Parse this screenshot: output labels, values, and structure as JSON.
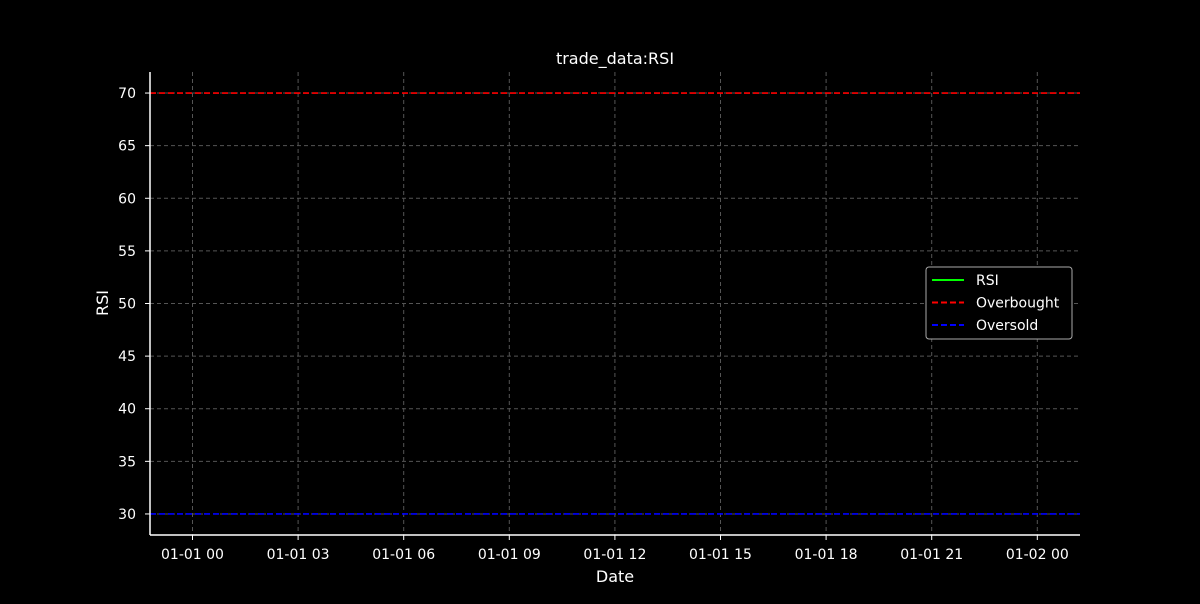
{
  "chart_data": {
    "type": "line",
    "title": "trade_data:RSI",
    "xlabel": "Date",
    "ylabel": "RSI",
    "x_ticks": [
      "01-01 00",
      "01-01 03",
      "01-01 06",
      "01-01 09",
      "01-01 12",
      "01-01 15",
      "01-01 18",
      "01-01 21",
      "01-02 00"
    ],
    "y_ticks": [
      30,
      35,
      40,
      45,
      50,
      55,
      60,
      65,
      70
    ],
    "ylim": [
      28,
      72
    ],
    "grid": true,
    "legend_position": "center-right",
    "series": [
      {
        "name": "RSI",
        "color": "#00ff00",
        "style": "solid",
        "values": []
      },
      {
        "name": "Overbought",
        "color": "#ff0000",
        "style": "dashed",
        "level": 70
      },
      {
        "name": "Oversold",
        "color": "#0000ff",
        "style": "dashed",
        "level": 30
      }
    ],
    "colors": {
      "background": "#000000",
      "axis": "#ffffff",
      "grid": "#555555",
      "legend_border": "#aaaaaa"
    }
  }
}
